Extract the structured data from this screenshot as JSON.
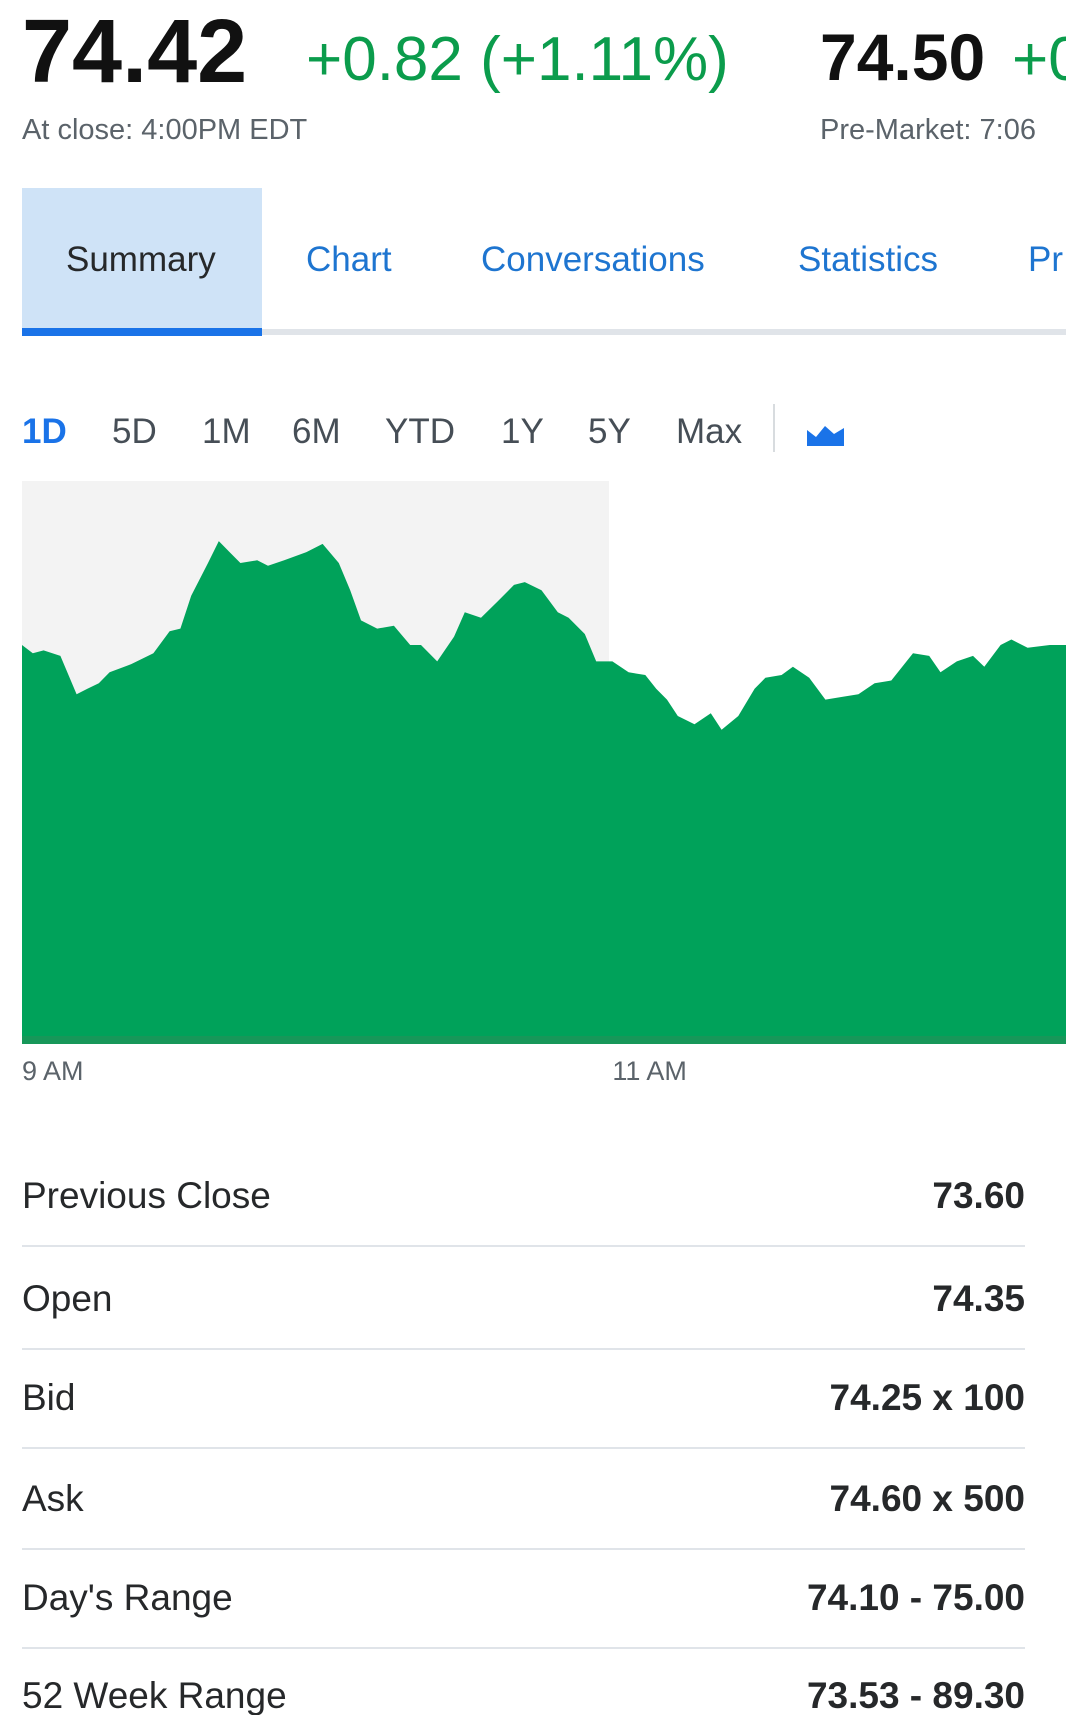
{
  "quote": {
    "price": "74.42",
    "change": "+0.82 (+1.11%)",
    "close_time": "At close: 4:00PM EDT",
    "pre_price": "74.50",
    "pre_change": "+0",
    "pre_time": "Pre-Market: 7:06"
  },
  "tabs": [
    "Summary",
    "Chart",
    "Conversations",
    "Statistics",
    "Pr"
  ],
  "ranges": [
    "1D",
    "5D",
    "1M",
    "6M",
    "YTD",
    "1Y",
    "5Y",
    "Max"
  ],
  "chart_data": {
    "type": "area",
    "color": "#00a25a",
    "x": [
      0,
      2.2,
      4.4,
      7.8,
      11.1,
      13.3,
      15.6,
      17.8,
      22.2,
      26.7,
      30,
      32.2,
      34.4,
      37.8,
      40,
      42.2,
      44.4,
      47.8,
      50,
      53.3,
      57.8,
      61.1,
      64.4,
      66.7,
      68.9,
      72.2,
      75.6,
      78.9,
      81.1,
      84.4,
      87.8,
      90,
      93.3,
      96.7,
      100,
      102.2,
      105.6,
      108.9,
      111.1,
      114.4,
      116.7,
      120,
      123.3,
      126.7,
      128.9,
      131.1,
      133.3,
      136.7,
      140,
      142.2,
      145.6,
      148.9,
      151.1,
      154.4,
      156.7,
      160,
      163.3,
      166.7,
      170,
      173.3,
      176.7,
      181.1,
      184.4,
      186.7,
      190,
      193.3,
      195.6,
      198.9,
      201.1,
      204.4,
      208.9,
      212.2
    ],
    "values": [
      74.62,
      74.59,
      74.6,
      74.58,
      74.44,
      74.46,
      74.48,
      74.52,
      74.55,
      74.59,
      74.67,
      74.68,
      74.8,
      74.92,
      75.0,
      74.96,
      74.92,
      74.93,
      74.91,
      74.93,
      74.96,
      74.99,
      74.92,
      74.82,
      74.71,
      74.68,
      74.69,
      74.62,
      74.62,
      74.56,
      74.65,
      74.74,
      74.72,
      74.78,
      74.84,
      74.85,
      74.82,
      74.74,
      74.72,
      74.66,
      74.56,
      74.56,
      74.52,
      74.51,
      74.46,
      74.42,
      74.36,
      74.33,
      74.37,
      74.31,
      74.36,
      74.46,
      74.5,
      74.51,
      74.54,
      74.5,
      74.42,
      74.43,
      74.44,
      74.48,
      74.49,
      74.59,
      74.58,
      74.52,
      74.56,
      74.58,
      74.54,
      74.62,
      74.64,
      74.61,
      74.62,
      74.62
    ],
    "xlim": [
      0,
      212.2
    ],
    "ylim": [
      73.16,
      75.22
    ],
    "xticks": [
      {
        "value": 0,
        "label": "9 AM"
      },
      {
        "value": 120,
        "label": "11 AM"
      }
    ]
  },
  "stats": {
    "rows": [
      [
        "Previous Close",
        "73.60"
      ],
      [
        "Open",
        "74.35"
      ],
      [
        "Bid",
        "74.25 x 100"
      ],
      [
        "Ask",
        "74.60 x 500"
      ],
      [
        "Day's Range",
        "74.10 - 75.00"
      ],
      [
        "52 Week Range",
        "73.53 - 89.30"
      ]
    ]
  }
}
